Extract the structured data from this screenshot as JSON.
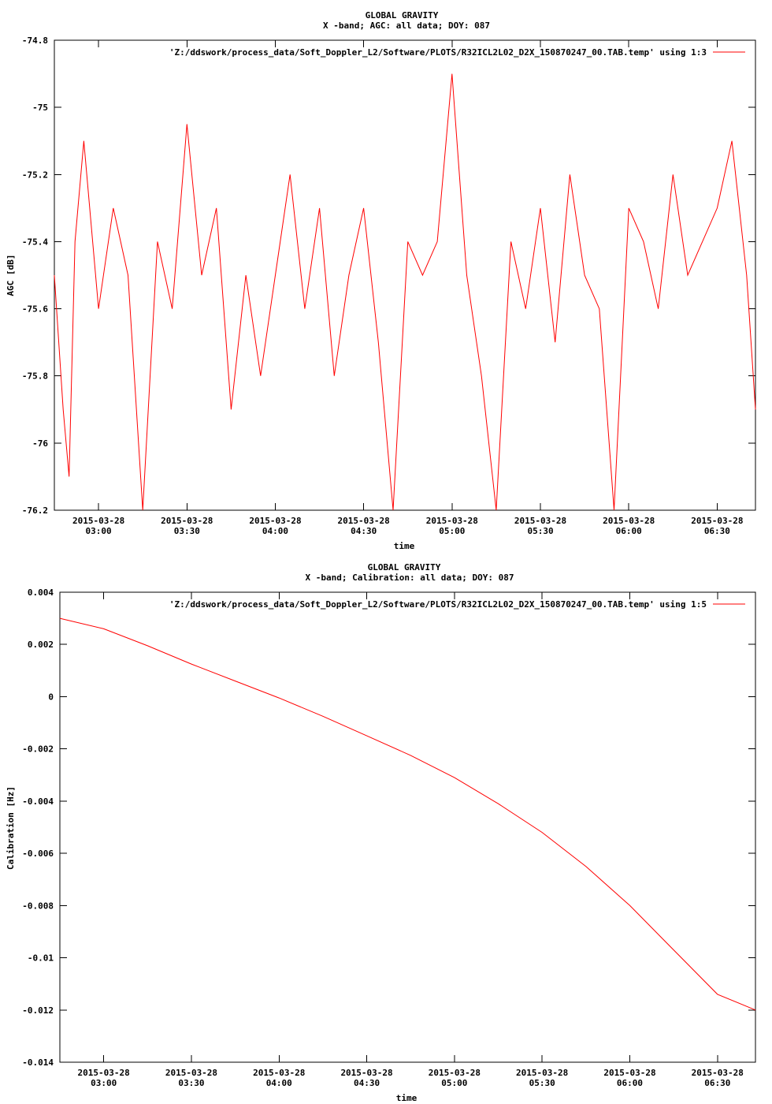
{
  "chart_data": [
    {
      "type": "line",
      "title": "GLOBAL GRAVITY",
      "subtitle": "X -band; AGC: all data; DOY: 087",
      "xlabel": "time",
      "ylabel": "AGC [dB]",
      "legend": "'Z:/ddswork/process_data/Soft_Doppler_L2/Software/PLOTS/R32ICL2L02_D2X_150870247_00.TAB.temp' using 1:3",
      "legend_position": "top-right",
      "color": "#ff0000",
      "xlim": [
        "2015-03-28 02:45",
        "2015-03-28 06:43"
      ],
      "ylim": [
        -76.2,
        -74.8
      ],
      "yticks": [
        "-74.8",
        "-75",
        "-75.2",
        "-75.4",
        "-75.6",
        "-75.8",
        "-76",
        "-76.2"
      ],
      "xticks": [
        {
          "value": "2015-03-28 03:00",
          "date": "2015-03-28",
          "time": "03:00"
        },
        {
          "value": "2015-03-28 03:30",
          "date": "2015-03-28",
          "time": "03:30"
        },
        {
          "value": "2015-03-28 04:00",
          "date": "2015-03-28",
          "time": "04:00"
        },
        {
          "value": "2015-03-28 04:30",
          "date": "2015-03-28",
          "time": "04:30"
        },
        {
          "value": "2015-03-28 05:00",
          "date": "2015-03-28",
          "time": "05:00"
        },
        {
          "value": "2015-03-28 05:30",
          "date": "2015-03-28",
          "time": "05:30"
        },
        {
          "value": "2015-03-28 06:00",
          "date": "2015-03-28",
          "time": "06:00"
        },
        {
          "value": "2015-03-28 06:30",
          "date": "2015-03-28",
          "time": "06:30"
        }
      ],
      "series": [
        {
          "x": [
            "2015-03-28 02:45",
            "2015-03-28 02:48",
            "2015-03-28 02:50",
            "2015-03-28 02:52",
            "2015-03-28 02:55",
            "2015-03-28 03:00",
            "2015-03-28 03:05",
            "2015-03-28 03:10",
            "2015-03-28 03:15",
            "2015-03-28 03:20",
            "2015-03-28 03:25",
            "2015-03-28 03:30",
            "2015-03-28 03:35",
            "2015-03-28 03:40",
            "2015-03-28 03:45",
            "2015-03-28 03:50",
            "2015-03-28 03:55",
            "2015-03-28 04:00",
            "2015-03-28 04:05",
            "2015-03-28 04:10",
            "2015-03-28 04:15",
            "2015-03-28 04:20",
            "2015-03-28 04:25",
            "2015-03-28 04:30",
            "2015-03-28 04:35",
            "2015-03-28 04:40",
            "2015-03-28 04:45",
            "2015-03-28 04:50",
            "2015-03-28 04:55",
            "2015-03-28 05:00",
            "2015-03-28 05:05",
            "2015-03-28 05:10",
            "2015-03-28 05:15",
            "2015-03-28 05:20",
            "2015-03-28 05:25",
            "2015-03-28 05:30",
            "2015-03-28 05:35",
            "2015-03-28 05:40",
            "2015-03-28 05:45",
            "2015-03-28 05:50",
            "2015-03-28 05:55",
            "2015-03-28 06:00",
            "2015-03-28 06:05",
            "2015-03-28 06:10",
            "2015-03-28 06:15",
            "2015-03-28 06:20",
            "2015-03-28 06:25",
            "2015-03-28 06:30",
            "2015-03-28 06:35",
            "2015-03-28 06:40",
            "2015-03-28 06:43"
          ],
          "y": [
            -75.5,
            -75.9,
            -76.1,
            -75.4,
            -75.1,
            -75.6,
            -75.3,
            -75.5,
            -76.2,
            -75.4,
            -75.6,
            -75.05,
            -75.5,
            -75.3,
            -75.9,
            -75.5,
            -75.8,
            -75.5,
            -75.2,
            -75.6,
            -75.3,
            -75.8,
            -75.5,
            -75.3,
            -75.7,
            -76.2,
            -75.4,
            -75.5,
            -75.4,
            -74.9,
            -75.5,
            -75.8,
            -76.2,
            -75.4,
            -75.6,
            -75.3,
            -75.7,
            -75.2,
            -75.5,
            -75.6,
            -76.2,
            -75.3,
            -75.4,
            -75.6,
            -75.2,
            -75.5,
            -75.4,
            -75.3,
            -75.1,
            -75.5,
            -75.9
          ]
        }
      ]
    },
    {
      "type": "line",
      "title": "GLOBAL GRAVITY",
      "subtitle": "X -band; Calibration: all data; DOY: 087",
      "xlabel": "time",
      "ylabel": "Calibration [Hz]",
      "legend": "'Z:/ddswork/process_data/Soft_Doppler_L2/Software/PLOTS/R32ICL2L02_D2X_150870247_00.TAB.temp' using 1:5",
      "legend_position": "top-right",
      "color": "#ff0000",
      "xlim": [
        "2015-03-28 02:45",
        "2015-03-28 06:43"
      ],
      "ylim": [
        -0.014,
        0.004
      ],
      "yticks": [
        "0.004",
        "0.002",
        "0",
        "-0.002",
        "-0.004",
        "-0.006",
        "-0.008",
        "-0.01",
        "-0.012",
        "-0.014"
      ],
      "xticks": [
        {
          "value": "2015-03-28 03:00",
          "date": "2015-03-28",
          "time": "03:00"
        },
        {
          "value": "2015-03-28 03:30",
          "date": "2015-03-28",
          "time": "03:30"
        },
        {
          "value": "2015-03-28 04:00",
          "date": "2015-03-28",
          "time": "04:00"
        },
        {
          "value": "2015-03-28 04:30",
          "date": "2015-03-28",
          "time": "04:30"
        },
        {
          "value": "2015-03-28 05:00",
          "date": "2015-03-28",
          "time": "05:00"
        },
        {
          "value": "2015-03-28 05:30",
          "date": "2015-03-28",
          "time": "05:30"
        },
        {
          "value": "2015-03-28 06:00",
          "date": "2015-03-28",
          "time": "06:00"
        },
        {
          "value": "2015-03-28 06:30",
          "date": "2015-03-28",
          "time": "06:30"
        }
      ],
      "series": [
        {
          "x": [
            "2015-03-28 02:45",
            "2015-03-28 03:00",
            "2015-03-28 03:15",
            "2015-03-28 03:30",
            "2015-03-28 03:45",
            "2015-03-28 04:00",
            "2015-03-28 04:15",
            "2015-03-28 04:30",
            "2015-03-28 04:45",
            "2015-03-28 05:00",
            "2015-03-28 05:15",
            "2015-03-28 05:30",
            "2015-03-28 05:45",
            "2015-03-28 06:00",
            "2015-03-28 06:15",
            "2015-03-28 06:30",
            "2015-03-28 06:43"
          ],
          "y": [
            0.003,
            0.0026,
            0.00195,
            0.00125,
            0.0006,
            -5e-05,
            -0.00075,
            -0.0015,
            -0.00225,
            -0.0031,
            -0.0041,
            -0.0052,
            -0.0065,
            -0.008,
            -0.0097,
            -0.0114,
            -0.012
          ]
        }
      ]
    }
  ]
}
